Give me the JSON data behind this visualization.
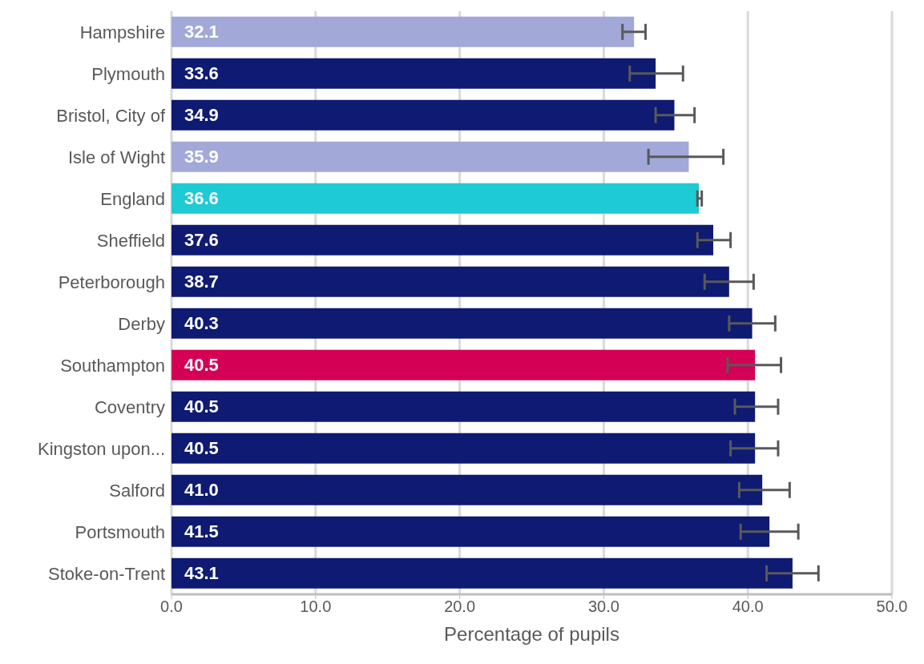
{
  "chart_data": {
    "type": "bar",
    "orientation": "horizontal",
    "xlabel": "Percentage of pupils",
    "categories": [
      "Hampshire",
      "Plymouth",
      "Bristol, City of",
      "Isle of Wight",
      "England",
      "Sheffield",
      "Peterborough",
      "Derby",
      "Southampton",
      "Coventry",
      "Kingston upon...",
      "Salford",
      "Portsmouth",
      "Stoke-on-Trent"
    ],
    "values": [
      32.1,
      33.6,
      34.9,
      35.9,
      36.6,
      37.6,
      38.7,
      40.3,
      40.5,
      40.5,
      40.5,
      41.0,
      41.5,
      43.1
    ],
    "value_labels": [
      "32.1",
      "33.6",
      "34.9",
      "35.9",
      "36.6",
      "37.6",
      "38.7",
      "40.3",
      "40.5",
      "40.5",
      "40.5",
      "41.0",
      "41.5",
      "43.1"
    ],
    "colors": [
      "#a2a8d8",
      "#0f1a72",
      "#0f1a72",
      "#a2a8d8",
      "#1ecad3",
      "#0f1a72",
      "#0f1a72",
      "#0f1a72",
      "#d40055",
      "#0f1a72",
      "#0f1a72",
      "#0f1a72",
      "#0f1a72",
      "#0f1a72"
    ],
    "errors": [
      [
        31.3,
        32.9
      ],
      [
        31.8,
        35.5
      ],
      [
        33.6,
        36.3
      ],
      [
        33.1,
        38.3
      ],
      [
        36.5,
        36.8
      ],
      [
        36.5,
        38.8
      ],
      [
        37.0,
        40.4
      ],
      [
        38.7,
        41.9
      ],
      [
        38.6,
        42.3
      ],
      [
        39.1,
        42.1
      ],
      [
        38.8,
        42.1
      ],
      [
        39.4,
        42.9
      ],
      [
        39.5,
        43.5
      ],
      [
        41.3,
        44.9
      ]
    ],
    "xlim": [
      0,
      50
    ],
    "xticks": [
      {
        "value": 0,
        "label": "0.0"
      },
      {
        "value": 10,
        "label": "10.0"
      },
      {
        "value": 20,
        "label": "20.0"
      },
      {
        "value": 30,
        "label": "30.0"
      },
      {
        "value": 40,
        "label": "40.0"
      },
      {
        "value": 50,
        "label": "50.0"
      }
    ],
    "grid": "x"
  }
}
